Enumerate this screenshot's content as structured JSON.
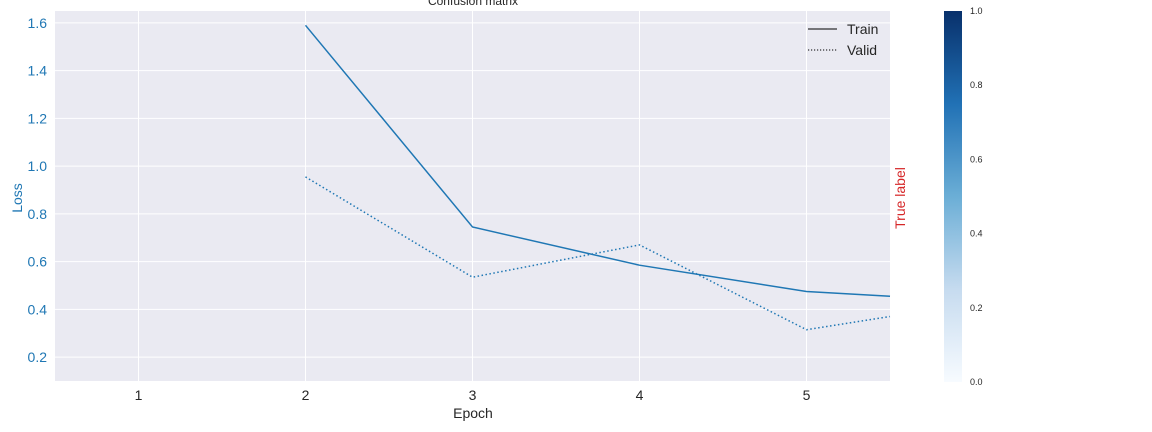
{
  "chart_data": {
    "type": "line",
    "title": "Confusion matrix",
    "xlabel": "Epoch",
    "ylabel": "Loss",
    "right_label": "True label",
    "x_ticks": [
      1,
      2,
      3,
      4,
      5
    ],
    "y_ticks": [
      "0.2",
      "0.4",
      "0.6",
      "0.8",
      "1.0",
      "1.2",
      "1.4",
      "1.6"
    ],
    "xlim": [
      0.5,
      5.5
    ],
    "ylim": [
      0.1,
      1.65
    ],
    "grid": true,
    "legend_position": "top-right",
    "series": [
      {
        "name": "Train",
        "style": "solid",
        "x": [
          2,
          3,
          4,
          5,
          5.5
        ],
        "y": [
          1.59,
          0.745,
          0.585,
          0.475,
          0.455
        ]
      },
      {
        "name": "Valid",
        "style": "dotted",
        "x": [
          2,
          3,
          4,
          5,
          5.5
        ],
        "y": [
          0.955,
          0.535,
          0.67,
          0.315,
          0.37
        ]
      }
    ],
    "colorbar": {
      "ticks": [
        "0.0",
        "0.2",
        "0.4",
        "0.6",
        "0.8",
        "1.0"
      ],
      "range": [
        0,
        1
      ],
      "colormap": "Blues",
      "colors": [
        "#f7fbff",
        "#c6dbef",
        "#6baed6",
        "#2171b5",
        "#08306b"
      ]
    },
    "colors": {
      "line": "#1f77b4",
      "axis_label": "#1f77b4",
      "right_label": "#d62728",
      "plot_background": "#eaeaf2",
      "grid": "#ffffff",
      "text": "#262626"
    }
  }
}
